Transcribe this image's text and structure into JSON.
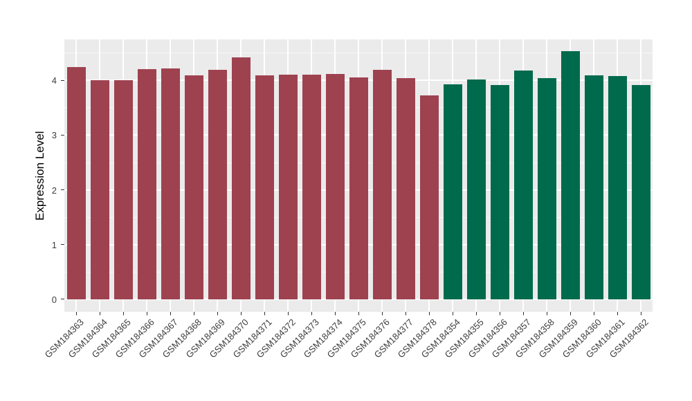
{
  "style": {
    "figure_background": "#FFFFFF",
    "panel_background": "#EBEBEB",
    "grid_major_color": "#FFFFFF",
    "grid_minor_color": "rgba(255,255,255,0.65)",
    "tick_mark_color": "#333333",
    "axis_text_color": "#3C3C3C",
    "axis_title_color": "#000000",
    "group_red_color": "#9E4250",
    "group_green_color": "#006A4D"
  },
  "chart_data": {
    "type": "bar",
    "title": "",
    "xlabel": "",
    "ylabel": "Expression Level",
    "ylim": [
      -0.23,
      4.75
    ],
    "yticks": [
      0,
      1,
      2,
      3,
      4
    ],
    "minor_gridlines": [
      0.5,
      1.5,
      2.5,
      3.5,
      4.5
    ],
    "grid": "on",
    "legend_position": "none",
    "bars": [
      {
        "label": "GSM184363",
        "value": 4.25,
        "fill": "#9E4250"
      },
      {
        "label": "GSM184364",
        "value": 4.01,
        "fill": "#9E4250"
      },
      {
        "label": "GSM184365",
        "value": 4.0,
        "fill": "#9E4250"
      },
      {
        "label": "GSM184366",
        "value": 4.21,
        "fill": "#9E4250"
      },
      {
        "label": "GSM184367",
        "value": 4.22,
        "fill": "#9E4250"
      },
      {
        "label": "GSM184368",
        "value": 4.09,
        "fill": "#9E4250"
      },
      {
        "label": "GSM184369",
        "value": 4.19,
        "fill": "#9E4250"
      },
      {
        "label": "GSM184370",
        "value": 4.42,
        "fill": "#9E4250"
      },
      {
        "label": "GSM184371",
        "value": 4.09,
        "fill": "#9E4250"
      },
      {
        "label": "GSM184372",
        "value": 4.11,
        "fill": "#9E4250"
      },
      {
        "label": "GSM184373",
        "value": 4.11,
        "fill": "#9E4250"
      },
      {
        "label": "GSM184374",
        "value": 4.12,
        "fill": "#9E4250"
      },
      {
        "label": "GSM184375",
        "value": 4.06,
        "fill": "#9E4250"
      },
      {
        "label": "GSM184376",
        "value": 4.19,
        "fill": "#9E4250"
      },
      {
        "label": "GSM184377",
        "value": 4.04,
        "fill": "#9E4250"
      },
      {
        "label": "GSM184378",
        "value": 3.72,
        "fill": "#9E4250"
      },
      {
        "label": "GSM184354",
        "value": 3.93,
        "fill": "#006A4D"
      },
      {
        "label": "GSM184355",
        "value": 4.02,
        "fill": "#006A4D"
      },
      {
        "label": "GSM184356",
        "value": 3.91,
        "fill": "#006A4D"
      },
      {
        "label": "GSM184357",
        "value": 4.18,
        "fill": "#006A4D"
      },
      {
        "label": "GSM184358",
        "value": 4.04,
        "fill": "#006A4D"
      },
      {
        "label": "GSM184359",
        "value": 4.53,
        "fill": "#006A4D"
      },
      {
        "label": "GSM184360",
        "value": 4.09,
        "fill": "#006A4D"
      },
      {
        "label": "GSM184361",
        "value": 4.08,
        "fill": "#006A4D"
      },
      {
        "label": "GSM184362",
        "value": 3.92,
        "fill": "#006A4D"
      }
    ]
  }
}
